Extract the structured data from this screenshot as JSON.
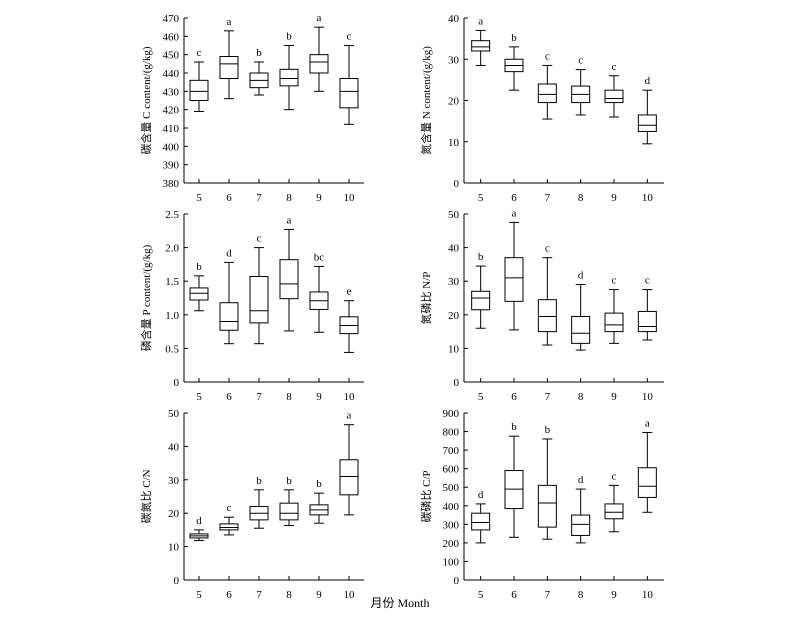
{
  "figure": {
    "xlabel": "月份 Month"
  },
  "chart_data": [
    {
      "type": "box",
      "ylabel": "碳含量 C content/(g/kg)",
      "ylim": [
        380,
        470
      ],
      "yticks": [
        380,
        390,
        400,
        410,
        420,
        430,
        440,
        450,
        460,
        470
      ],
      "categories": [
        "5",
        "6",
        "7",
        "8",
        "9",
        "10"
      ],
      "boxes": [
        {
          "month": "5",
          "min": 419,
          "q1": 425,
          "median": 430,
          "q3": 436,
          "max": 446,
          "letter": "c"
        },
        {
          "month": "6",
          "min": 426,
          "q1": 437,
          "median": 445,
          "q3": 449,
          "max": 463,
          "letter": "a"
        },
        {
          "month": "7",
          "min": 428,
          "q1": 432,
          "median": 436,
          "q3": 440,
          "max": 446,
          "letter": "b"
        },
        {
          "month": "8",
          "min": 420,
          "q1": 433,
          "median": 437,
          "q3": 442,
          "max": 455,
          "letter": "b"
        },
        {
          "month": "9",
          "min": 430,
          "q1": 440,
          "median": 446,
          "q3": 450,
          "max": 465,
          "letter": "a"
        },
        {
          "month": "10",
          "min": 412,
          "q1": 421,
          "median": 430,
          "q3": 437,
          "max": 455,
          "letter": "c"
        }
      ]
    },
    {
      "type": "box",
      "ylabel": "氮含量 N content/(g/kg)",
      "ylim": [
        0,
        40
      ],
      "yticks": [
        0,
        10,
        20,
        30,
        40
      ],
      "categories": [
        "5",
        "6",
        "7",
        "8",
        "9",
        "10"
      ],
      "boxes": [
        {
          "month": "5",
          "min": 28.5,
          "q1": 32,
          "median": 33,
          "q3": 34.5,
          "max": 37,
          "letter": "a"
        },
        {
          "month": "6",
          "min": 22.5,
          "q1": 27,
          "median": 28.5,
          "q3": 30,
          "max": 33,
          "letter": "b"
        },
        {
          "month": "7",
          "min": 15.5,
          "q1": 19.5,
          "median": 21.5,
          "q3": 24,
          "max": 28.5,
          "letter": "c"
        },
        {
          "month": "8",
          "min": 16.5,
          "q1": 19.5,
          "median": 21.5,
          "q3": 23.5,
          "max": 27.5,
          "letter": "c"
        },
        {
          "month": "9",
          "min": 16,
          "q1": 19.5,
          "median": 20.5,
          "q3": 22.5,
          "max": 26,
          "letter": "c"
        },
        {
          "month": "10",
          "min": 9.5,
          "q1": 12.5,
          "median": 14,
          "q3": 16.5,
          "max": 22.5,
          "letter": "d"
        }
      ]
    },
    {
      "type": "box",
      "ylabel": "磷含量 P content/(g/kg)",
      "ylim": [
        0,
        2.5
      ],
      "yticks": [
        0,
        0.5,
        1.0,
        1.5,
        2.0,
        2.5
      ],
      "ytick_labels": [
        "0",
        "0.5",
        "1.0",
        "1.5",
        "2.0",
        "2.5"
      ],
      "categories": [
        "5",
        "6",
        "7",
        "8",
        "9",
        "10"
      ],
      "boxes": [
        {
          "month": "5",
          "min": 1.06,
          "q1": 1.22,
          "median": 1.32,
          "q3": 1.4,
          "max": 1.58,
          "letter": "b"
        },
        {
          "month": "6",
          "min": 0.57,
          "q1": 0.77,
          "median": 0.9,
          "q3": 1.18,
          "max": 1.78,
          "letter": "d"
        },
        {
          "month": "7",
          "min": 0.57,
          "q1": 0.88,
          "median": 1.06,
          "q3": 1.57,
          "max": 2.0,
          "letter": "c"
        },
        {
          "month": "8",
          "min": 0.76,
          "q1": 1.24,
          "median": 1.46,
          "q3": 1.82,
          "max": 2.27,
          "letter": "a"
        },
        {
          "month": "9",
          "min": 0.74,
          "q1": 1.08,
          "median": 1.21,
          "q3": 1.34,
          "max": 1.72,
          "letter": "bc"
        },
        {
          "month": "10",
          "min": 0.44,
          "q1": 0.72,
          "median": 0.84,
          "q3": 0.97,
          "max": 1.21,
          "letter": "e"
        }
      ]
    },
    {
      "type": "box",
      "ylabel": "氮磷比 N/P",
      "ylim": [
        0,
        50
      ],
      "yticks": [
        0,
        10,
        20,
        30,
        40,
        50
      ],
      "categories": [
        "5",
        "6",
        "7",
        "8",
        "9",
        "10"
      ],
      "boxes": [
        {
          "month": "5",
          "min": 16,
          "q1": 21.5,
          "median": 25,
          "q3": 27,
          "max": 34.5,
          "letter": "b"
        },
        {
          "month": "6",
          "min": 15.5,
          "q1": 24,
          "median": 31,
          "q3": 37,
          "max": 47.5,
          "letter": "a"
        },
        {
          "month": "7",
          "min": 11,
          "q1": 15,
          "median": 19.5,
          "q3": 24.5,
          "max": 37,
          "letter": "c"
        },
        {
          "month": "8",
          "min": 9.5,
          "q1": 11.5,
          "median": 14.5,
          "q3": 19.5,
          "max": 29,
          "letter": "d"
        },
        {
          "month": "9",
          "min": 11.5,
          "q1": 15,
          "median": 17,
          "q3": 20.5,
          "max": 27.5,
          "letter": "c"
        },
        {
          "month": "10",
          "min": 12.5,
          "q1": 15,
          "median": 16.5,
          "q3": 21,
          "max": 27.5,
          "letter": "c"
        }
      ]
    },
    {
      "type": "box",
      "ylabel": "碳氮比 C/N",
      "ylim": [
        0,
        50
      ],
      "yticks": [
        0,
        10,
        20,
        30,
        40,
        50
      ],
      "categories": [
        "5",
        "6",
        "7",
        "8",
        "9",
        "10"
      ],
      "boxes": [
        {
          "month": "5",
          "min": 11.8,
          "q1": 12.6,
          "median": 13.2,
          "q3": 13.8,
          "max": 15,
          "letter": "d"
        },
        {
          "month": "6",
          "min": 13.5,
          "q1": 15,
          "median": 15.7,
          "q3": 16.8,
          "max": 18.8,
          "letter": "c"
        },
        {
          "month": "7",
          "min": 15.5,
          "q1": 18,
          "median": 20,
          "q3": 22,
          "max": 27,
          "letter": "b"
        },
        {
          "month": "8",
          "min": 16.3,
          "q1": 18,
          "median": 20,
          "q3": 23,
          "max": 27,
          "letter": "b"
        },
        {
          "month": "9",
          "min": 17,
          "q1": 19.5,
          "median": 21,
          "q3": 22.5,
          "max": 26,
          "letter": "b"
        },
        {
          "month": "10",
          "min": 19.5,
          "q1": 25.5,
          "median": 31,
          "q3": 36,
          "max": 46.5,
          "letter": "a"
        }
      ]
    },
    {
      "type": "box",
      "ylabel": "碳磷比 C/P",
      "ylim": [
        0,
        900
      ],
      "yticks": [
        0,
        100,
        200,
        300,
        400,
        500,
        600,
        700,
        800,
        900
      ],
      "categories": [
        "5",
        "6",
        "7",
        "8",
        "9",
        "10"
      ],
      "boxes": [
        {
          "month": "5",
          "min": 200,
          "q1": 270,
          "median": 310,
          "q3": 360,
          "max": 410,
          "letter": "d"
        },
        {
          "month": "6",
          "min": 230,
          "q1": 385,
          "median": 490,
          "q3": 590,
          "max": 775,
          "letter": "b"
        },
        {
          "month": "7",
          "min": 220,
          "q1": 285,
          "median": 415,
          "q3": 510,
          "max": 760,
          "letter": "b"
        },
        {
          "month": "8",
          "min": 200,
          "q1": 240,
          "median": 300,
          "q3": 350,
          "max": 490,
          "letter": "d"
        },
        {
          "month": "9",
          "min": 260,
          "q1": 330,
          "median": 365,
          "q3": 410,
          "max": 510,
          "letter": "c"
        },
        {
          "month": "10",
          "min": 365,
          "q1": 445,
          "median": 505,
          "q3": 605,
          "max": 795,
          "letter": "a"
        }
      ]
    }
  ]
}
